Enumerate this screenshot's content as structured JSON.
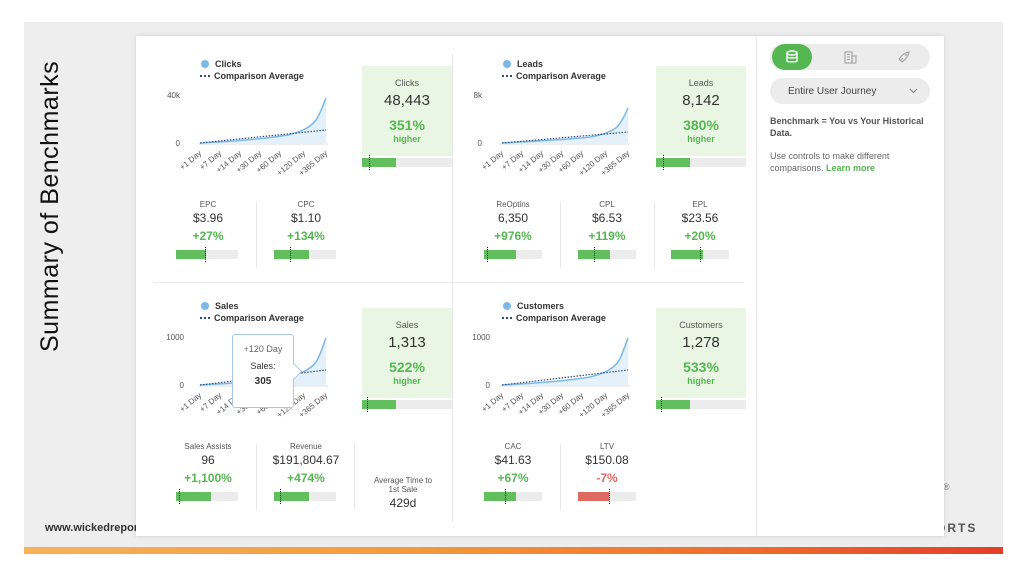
{
  "slide": {
    "title": "Summary of Benchmarks",
    "footer_url": "www.wickedreport",
    "footer_brand": "ORTS",
    "footer_mark": "®"
  },
  "legend": {
    "comparison": "Comparison Average"
  },
  "panels": {
    "clicks": {
      "series": "Clicks",
      "y_max_label": "40k",
      "y_min_label": "0",
      "x_ticks": [
        "+1 Day",
        "+7 Day",
        "+14 Day",
        "+30 Day",
        "+60 Day",
        "+120 Day",
        "+365 Day"
      ],
      "highlight": {
        "name": "Clicks",
        "value": "48,443",
        "pct": "351%",
        "sub": "higher",
        "bar_fill": 0.38,
        "bar_mark": 0.08
      },
      "metrics": [
        {
          "name": "EPC",
          "value": "$3.96",
          "pct": "+27%",
          "bar_fill": 0.49,
          "bar_mark": 0.47
        },
        {
          "name": "CPC",
          "value": "$1.10",
          "pct": "+134%",
          "bar_fill": 0.56,
          "bar_mark": 0.25
        }
      ]
    },
    "leads": {
      "series": "Leads",
      "y_max_label": "8k",
      "y_min_label": "0",
      "x_ticks": [
        "+1 Day",
        "+7 Day",
        "+14 Day",
        "+30 Day",
        "+60 Day",
        "+120 Day",
        "+365 Day"
      ],
      "highlight": {
        "name": "Leads",
        "value": "8,142",
        "pct": "380%",
        "sub": "higher",
        "bar_fill": 0.38,
        "bar_mark": 0.08
      },
      "metrics": [
        {
          "name": "ReOptins",
          "value": "6,350",
          "pct": "+976%",
          "bar_fill": 0.56,
          "bar_mark": 0.05
        },
        {
          "name": "CPL",
          "value": "$6.53",
          "pct": "+119%",
          "bar_fill": 0.56,
          "bar_mark": 0.28
        },
        {
          "name": "EPL",
          "value": "$23.56",
          "pct": "+20%",
          "bar_fill": 0.56,
          "bar_mark": 0.5
        }
      ]
    },
    "sales": {
      "series": "Sales",
      "y_max_label": "1000",
      "y_min_label": "0",
      "x_ticks": [
        "+1 Day",
        "+7 Day",
        "+14 Day",
        "+30 Day",
        "+60 Day",
        "+120 Day",
        "+365 Day"
      ],
      "highlight": {
        "name": "Sales",
        "value": "1,313",
        "pct": "522%",
        "sub": "higher",
        "bar_fill": 0.38,
        "bar_mark": 0.06
      },
      "tooltip": {
        "label": "+120 Day",
        "series": "Sales:",
        "value": "305"
      },
      "metrics": [
        {
          "name": "Sales Assists",
          "value": "96",
          "pct": "+1,100%",
          "bar_fill": 0.56,
          "bar_mark": 0.05
        },
        {
          "name": "Revenue",
          "value": "$191,804.67",
          "pct": "+474%",
          "bar_fill": 0.56,
          "bar_mark": 0.1
        }
      ],
      "extra": {
        "name": "Average Time to 1st Sale",
        "value": "429d"
      }
    },
    "customers": {
      "series": "Customers",
      "y_max_label": "1000",
      "y_min_label": "0",
      "x_ticks": [
        "+1 Day",
        "+7 Day",
        "+14 Day",
        "+30 Day",
        "+60 Day",
        "+120 Day",
        "+365 Day"
      ],
      "highlight": {
        "name": "Customers",
        "value": "1,278",
        "pct": "533%",
        "sub": "higher",
        "bar_fill": 0.38,
        "bar_mark": 0.06
      },
      "metrics": [
        {
          "name": "CAC",
          "value": "$41.63",
          "pct": "+67%",
          "bar_fill": 0.56,
          "bar_mark": 0.36
        },
        {
          "name": "LTV",
          "value": "$150.08",
          "pct": "-7%",
          "negative": true,
          "bar_fill": 0.53,
          "bar_mark": 0.53
        }
      ]
    }
  },
  "sidebar": {
    "toggle_icons": [
      "database-icon",
      "building-icon",
      "rocket-icon"
    ],
    "select_value": "Entire User Journey",
    "benchmark_text": "Benchmark = You vs Your Historical Data.",
    "help_text": "Use controls to make different comparisons.",
    "learn_more": "Learn more"
  },
  "colors": {
    "accent_green": "#55b751",
    "negative_red": "#de6a60",
    "series_blue": "#7ab9e8",
    "comparison_navy": "#2c4c7c"
  }
}
